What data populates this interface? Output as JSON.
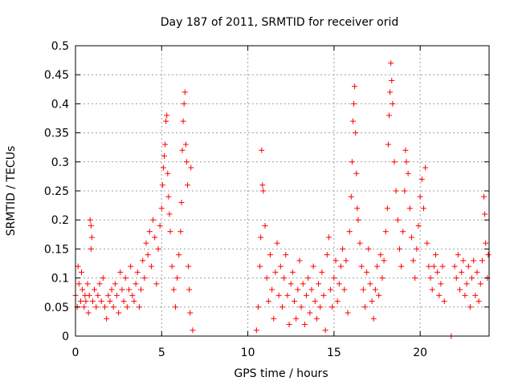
{
  "chart_data": {
    "type": "scatter",
    "title": "Day 187 of 2011, SRMTID for receiver orid",
    "xlabel": "GPS time / hours",
    "ylabel": "SRMTID / TECUs",
    "xlim": [
      0,
      24
    ],
    "ylim": [
      0,
      0.5
    ],
    "xticks": [
      0,
      5,
      10,
      15,
      20
    ],
    "yticks": [
      0,
      0.05,
      0.1,
      0.15,
      0.2,
      0.25,
      0.3,
      0.35,
      0.4,
      0.45,
      0.5
    ],
    "xtick_labels": [
      "0",
      "5",
      "10",
      "15",
      "20"
    ],
    "ytick_labels": [
      "0",
      "0.05",
      "0.1",
      "0.15",
      "0.2",
      "0.25",
      "0.3",
      "0.35",
      "0.4",
      "0.45",
      "0.5"
    ],
    "grid": true,
    "marker": "+",
    "color": "#ff0000",
    "series": [
      {
        "name": "SRMTID",
        "points": [
          [
            0.0,
            0.07
          ],
          [
            0.1,
            0.05
          ],
          [
            0.15,
            0.12
          ],
          [
            0.2,
            0.09
          ],
          [
            0.3,
            0.06
          ],
          [
            0.35,
            0.11
          ],
          [
            0.4,
            0.08
          ],
          [
            0.5,
            0.05
          ],
          [
            0.55,
            0.07
          ],
          [
            0.6,
            0.06
          ],
          [
            0.7,
            0.09
          ],
          [
            0.75,
            0.04
          ],
          [
            0.8,
            0.07
          ],
          [
            0.85,
            0.2
          ],
          [
            0.9,
            0.19
          ],
          [
            0.95,
            0.17
          ],
          [
            0.9,
            0.15
          ],
          [
            1.0,
            0.06
          ],
          [
            1.1,
            0.08
          ],
          [
            1.2,
            0.05
          ],
          [
            1.3,
            0.07
          ],
          [
            1.4,
            0.09
          ],
          [
            1.5,
            0.06
          ],
          [
            1.6,
            0.1
          ],
          [
            1.7,
            0.05
          ],
          [
            1.8,
            0.03
          ],
          [
            1.9,
            0.07
          ],
          [
            2.0,
            0.06
          ],
          [
            2.1,
            0.08
          ],
          [
            2.2,
            0.05
          ],
          [
            2.3,
            0.09
          ],
          [
            2.4,
            0.07
          ],
          [
            2.5,
            0.04
          ],
          [
            2.6,
            0.11
          ],
          [
            2.7,
            0.08
          ],
          [
            2.8,
            0.06
          ],
          [
            2.9,
            0.1
          ],
          [
            3.0,
            0.05
          ],
          [
            3.1,
            0.08
          ],
          [
            3.2,
            0.12
          ],
          [
            3.3,
            0.07
          ],
          [
            3.4,
            0.06
          ],
          [
            3.5,
            0.09
          ],
          [
            3.6,
            0.11
          ],
          [
            3.7,
            0.05
          ],
          [
            3.8,
            0.08
          ],
          [
            3.9,
            0.13
          ],
          [
            4.0,
            0.1
          ],
          [
            4.1,
            0.16
          ],
          [
            4.2,
            0.14
          ],
          [
            4.3,
            0.18
          ],
          [
            4.4,
            0.12
          ],
          [
            4.5,
            0.2
          ],
          [
            4.6,
            0.17
          ],
          [
            4.7,
            0.09
          ],
          [
            4.8,
            0.15
          ],
          [
            4.9,
            0.19
          ],
          [
            5.0,
            0.22
          ],
          [
            5.05,
            0.26
          ],
          [
            5.1,
            0.29
          ],
          [
            5.15,
            0.31
          ],
          [
            5.2,
            0.33
          ],
          [
            5.25,
            0.37
          ],
          [
            5.3,
            0.38
          ],
          [
            5.35,
            0.28
          ],
          [
            5.4,
            0.24
          ],
          [
            5.45,
            0.21
          ],
          [
            5.5,
            0.18
          ],
          [
            5.6,
            0.12
          ],
          [
            5.7,
            0.08
          ],
          [
            5.8,
            0.05
          ],
          [
            5.9,
            0.1
          ],
          [
            6.0,
            0.14
          ],
          [
            6.1,
            0.18
          ],
          [
            6.15,
            0.23
          ],
          [
            6.2,
            0.32
          ],
          [
            6.25,
            0.37
          ],
          [
            6.3,
            0.4
          ],
          [
            6.35,
            0.42
          ],
          [
            6.4,
            0.33
          ],
          [
            6.45,
            0.3
          ],
          [
            6.5,
            0.26
          ],
          [
            6.55,
            0.12
          ],
          [
            6.6,
            0.08
          ],
          [
            6.65,
            0.04
          ],
          [
            6.7,
            0.29
          ],
          [
            6.8,
            0.01
          ],
          [
            10.5,
            0.01
          ],
          [
            10.6,
            0.05
          ],
          [
            10.7,
            0.12
          ],
          [
            10.75,
            0.17
          ],
          [
            10.8,
            0.32
          ],
          [
            10.85,
            0.26
          ],
          [
            10.9,
            0.25
          ],
          [
            11.0,
            0.19
          ],
          [
            11.1,
            0.1
          ],
          [
            11.2,
            0.06
          ],
          [
            11.3,
            0.14
          ],
          [
            11.4,
            0.08
          ],
          [
            11.5,
            0.03
          ],
          [
            11.6,
            0.11
          ],
          [
            11.7,
            0.16
          ],
          [
            11.8,
            0.07
          ],
          [
            11.9,
            0.12
          ],
          [
            12.0,
            0.05
          ],
          [
            12.1,
            0.1
          ],
          [
            12.2,
            0.14
          ],
          [
            12.3,
            0.07
          ],
          [
            12.4,
            0.02
          ],
          [
            12.5,
            0.09
          ],
          [
            12.6,
            0.11
          ],
          [
            12.7,
            0.06
          ],
          [
            12.8,
            0.03
          ],
          [
            12.9,
            0.08
          ],
          [
            13.0,
            0.13
          ],
          [
            13.1,
            0.05
          ],
          [
            13.2,
            0.09
          ],
          [
            13.3,
            0.02
          ],
          [
            13.4,
            0.07
          ],
          [
            13.5,
            0.1
          ],
          [
            13.6,
            0.04
          ],
          [
            13.7,
            0.08
          ],
          [
            13.8,
            0.12
          ],
          [
            13.9,
            0.06
          ],
          [
            14.0,
            0.03
          ],
          [
            14.1,
            0.09
          ],
          [
            14.2,
            0.05
          ],
          [
            14.3,
            0.11
          ],
          [
            14.4,
            0.07
          ],
          [
            14.5,
            0.01
          ],
          [
            14.6,
            0.14
          ],
          [
            14.7,
            0.17
          ],
          [
            14.8,
            0.08
          ],
          [
            14.9,
            0.05
          ],
          [
            15.0,
            0.1
          ],
          [
            15.1,
            0.13
          ],
          [
            15.2,
            0.06
          ],
          [
            15.3,
            0.09
          ],
          [
            15.4,
            0.12
          ],
          [
            15.5,
            0.15
          ],
          [
            15.6,
            0.08
          ],
          [
            15.7,
            0.13
          ],
          [
            15.8,
            0.04
          ],
          [
            15.9,
            0.18
          ],
          [
            16.0,
            0.24
          ],
          [
            16.05,
            0.3
          ],
          [
            16.1,
            0.37
          ],
          [
            16.15,
            0.4
          ],
          [
            16.2,
            0.43
          ],
          [
            16.25,
            0.35
          ],
          [
            16.3,
            0.28
          ],
          [
            16.35,
            0.22
          ],
          [
            16.4,
            0.2
          ],
          [
            16.5,
            0.16
          ],
          [
            16.6,
            0.12
          ],
          [
            16.7,
            0.08
          ],
          [
            16.8,
            0.05
          ],
          [
            16.9,
            0.11
          ],
          [
            17.0,
            0.15
          ],
          [
            17.1,
            0.09
          ],
          [
            17.2,
            0.06
          ],
          [
            17.3,
            0.03
          ],
          [
            17.4,
            0.08
          ],
          [
            17.5,
            0.12
          ],
          [
            17.6,
            0.07
          ],
          [
            17.7,
            0.14
          ],
          [
            17.8,
            0.1
          ],
          [
            17.9,
            0.13
          ],
          [
            18.0,
            0.18
          ],
          [
            18.1,
            0.22
          ],
          [
            18.15,
            0.33
          ],
          [
            18.2,
            0.38
          ],
          [
            18.25,
            0.42
          ],
          [
            18.3,
            0.47
          ],
          [
            18.35,
            0.44
          ],
          [
            18.4,
            0.4
          ],
          [
            18.5,
            0.3
          ],
          [
            18.6,
            0.25
          ],
          [
            18.7,
            0.2
          ],
          [
            18.8,
            0.15
          ],
          [
            18.9,
            0.12
          ],
          [
            19.0,
            0.18
          ],
          [
            19.1,
            0.25
          ],
          [
            19.15,
            0.32
          ],
          [
            19.2,
            0.3
          ],
          [
            19.3,
            0.28
          ],
          [
            19.4,
            0.22
          ],
          [
            19.5,
            0.17
          ],
          [
            19.6,
            0.13
          ],
          [
            19.7,
            0.1
          ],
          [
            19.8,
            0.15
          ],
          [
            19.9,
            0.19
          ],
          [
            20.0,
            0.24
          ],
          [
            20.1,
            0.27
          ],
          [
            20.2,
            0.22
          ],
          [
            20.3,
            0.29
          ],
          [
            20.4,
            0.16
          ],
          [
            20.5,
            0.12
          ],
          [
            20.6,
            0.1
          ],
          [
            20.7,
            0.08
          ],
          [
            20.8,
            0.12
          ],
          [
            20.9,
            0.14
          ],
          [
            21.0,
            0.11
          ],
          [
            21.1,
            0.07
          ],
          [
            21.2,
            0.09
          ],
          [
            21.3,
            0.12
          ],
          [
            21.4,
            0.06
          ],
          [
            21.8,
            0.0
          ],
          [
            22.0,
            0.12
          ],
          [
            22.1,
            0.1
          ],
          [
            22.2,
            0.14
          ],
          [
            22.3,
            0.08
          ],
          [
            22.4,
            0.11
          ],
          [
            22.5,
            0.13
          ],
          [
            22.6,
            0.07
          ],
          [
            22.7,
            0.09
          ],
          [
            22.8,
            0.12
          ],
          [
            22.9,
            0.05
          ],
          [
            23.0,
            0.1
          ],
          [
            23.1,
            0.13
          ],
          [
            23.2,
            0.07
          ],
          [
            23.3,
            0.11
          ],
          [
            23.4,
            0.06
          ],
          [
            23.5,
            0.09
          ],
          [
            23.6,
            0.13
          ],
          [
            23.7,
            0.24
          ],
          [
            23.75,
            0.21
          ],
          [
            23.8,
            0.16
          ],
          [
            23.9,
            0.1
          ],
          [
            23.95,
            0.14
          ]
        ]
      }
    ]
  }
}
